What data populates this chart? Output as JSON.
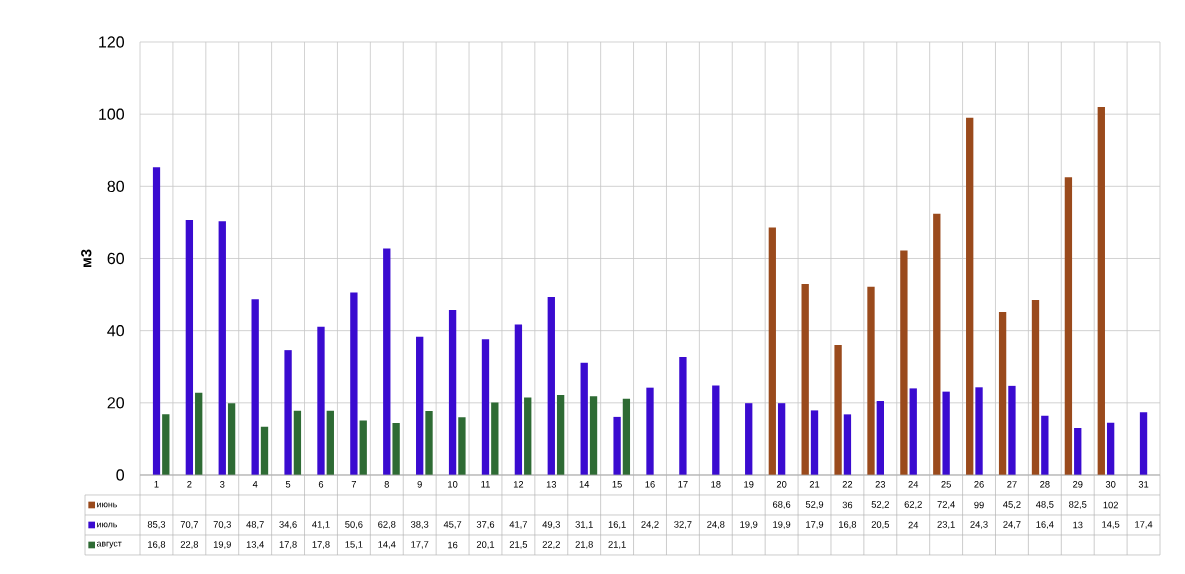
{
  "chart_data": {
    "type": "bar",
    "ylabel": "м3",
    "categories": [
      "1",
      "2",
      "3",
      "4",
      "5",
      "6",
      "7",
      "8",
      "9",
      "10",
      "11",
      "12",
      "13",
      "14",
      "15",
      "16",
      "17",
      "18",
      "19",
      "20",
      "21",
      "22",
      "23",
      "24",
      "25",
      "26",
      "27",
      "28",
      "29",
      "30",
      "31"
    ],
    "series": [
      {
        "name": "июнь",
        "color": "#9a4a1c",
        "values": [
          null,
          null,
          null,
          null,
          null,
          null,
          null,
          null,
          null,
          null,
          null,
          null,
          null,
          null,
          null,
          null,
          null,
          null,
          null,
          68.6,
          52.9,
          36,
          52.2,
          62.2,
          72.4,
          99,
          45.2,
          48.5,
          82.5,
          102,
          null
        ],
        "value_labels": [
          null,
          null,
          null,
          null,
          null,
          null,
          null,
          null,
          null,
          null,
          null,
          null,
          null,
          null,
          null,
          null,
          null,
          null,
          null,
          "68,6",
          "52,9",
          "36",
          "52,2",
          "62,2",
          "72,4",
          "99",
          "45,2",
          "48,5",
          "82,5",
          "102",
          null
        ]
      },
      {
        "name": "июль",
        "color": "#3a0bd0",
        "values": [
          85.3,
          70.7,
          70.3,
          48.7,
          34.6,
          41.1,
          50.6,
          62.8,
          38.3,
          45.7,
          37.6,
          41.7,
          49.3,
          31.1,
          16.1,
          24.2,
          32.7,
          24.8,
          19.9,
          19.9,
          17.9,
          16.8,
          20.5,
          24,
          23.1,
          24.3,
          24.7,
          16.4,
          13,
          14.5,
          17.4
        ],
        "value_labels": [
          "85,3",
          "70,7",
          "70,3",
          "48,7",
          "34,6",
          "41,1",
          "50,6",
          "62,8",
          "38,3",
          "45,7",
          "37,6",
          "41,7",
          "49,3",
          "31,1",
          "16,1",
          "24,2",
          "32,7",
          "24,8",
          "19,9",
          "19,9",
          "17,9",
          "16,8",
          "20,5",
          "24",
          "23,1",
          "24,3",
          "24,7",
          "16,4",
          "13",
          "14,5",
          "17,4"
        ]
      },
      {
        "name": "август",
        "color": "#2e6b34",
        "values": [
          16.8,
          22.8,
          19.9,
          13.4,
          17.8,
          17.8,
          15.1,
          14.4,
          17.7,
          16,
          20.1,
          21.5,
          22.2,
          21.8,
          21.1,
          null,
          null,
          null,
          null,
          null,
          null,
          null,
          null,
          null,
          null,
          null,
          null,
          null,
          null,
          null,
          null
        ],
        "value_labels": [
          "16,8",
          "22,8",
          "19,9",
          "13,4",
          "17,8",
          "17,8",
          "15,1",
          "14,4",
          "17,7",
          "16",
          "20,1",
          "21,5",
          "22,2",
          "21,8",
          "21,1",
          null,
          null,
          null,
          null,
          null,
          null,
          null,
          null,
          null,
          null,
          null,
          null,
          null,
          null,
          null,
          null
        ]
      }
    ],
    "ylim": [
      0,
      120
    ],
    "yticks": [
      0,
      20,
      40,
      60,
      80,
      100,
      120
    ],
    "grid": true,
    "legend": "bottom"
  }
}
